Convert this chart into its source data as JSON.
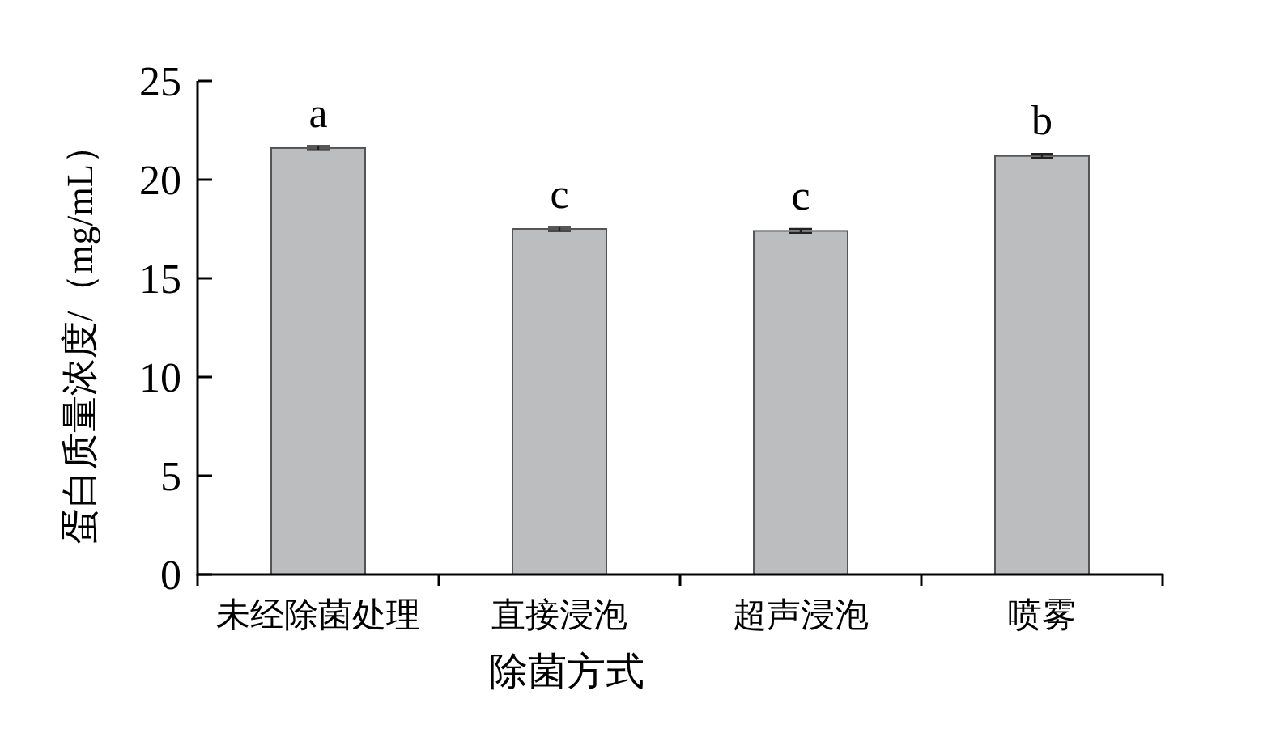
{
  "chart_data": {
    "type": "bar",
    "xlabel": "除菌方式",
    "ylabel": "蛋白质量浓度/（mg/mL）",
    "categories": [
      "未经除菌处理",
      "直接浸泡",
      "超声浸泡",
      "喷雾"
    ],
    "values": [
      21.6,
      17.5,
      17.4,
      21.2
    ],
    "errors": [
      0.1,
      0.1,
      0.1,
      0.1
    ],
    "color": "#bcbdbf",
    "ylim": [
      0,
      25
    ],
    "yticks": [
      0,
      5,
      10,
      15,
      20,
      25
    ],
    "annotations": [
      {
        "text": "a",
        "x": "未经除菌处理",
        "y": 21.6
      },
      {
        "text": "c",
        "x": "直接浸泡",
        "y": 17.5
      },
      {
        "text": "c",
        "x": "超声浸泡",
        "y": 17.4
      },
      {
        "text": "b",
        "x": "喷雾",
        "y": 21.2
      }
    ]
  }
}
